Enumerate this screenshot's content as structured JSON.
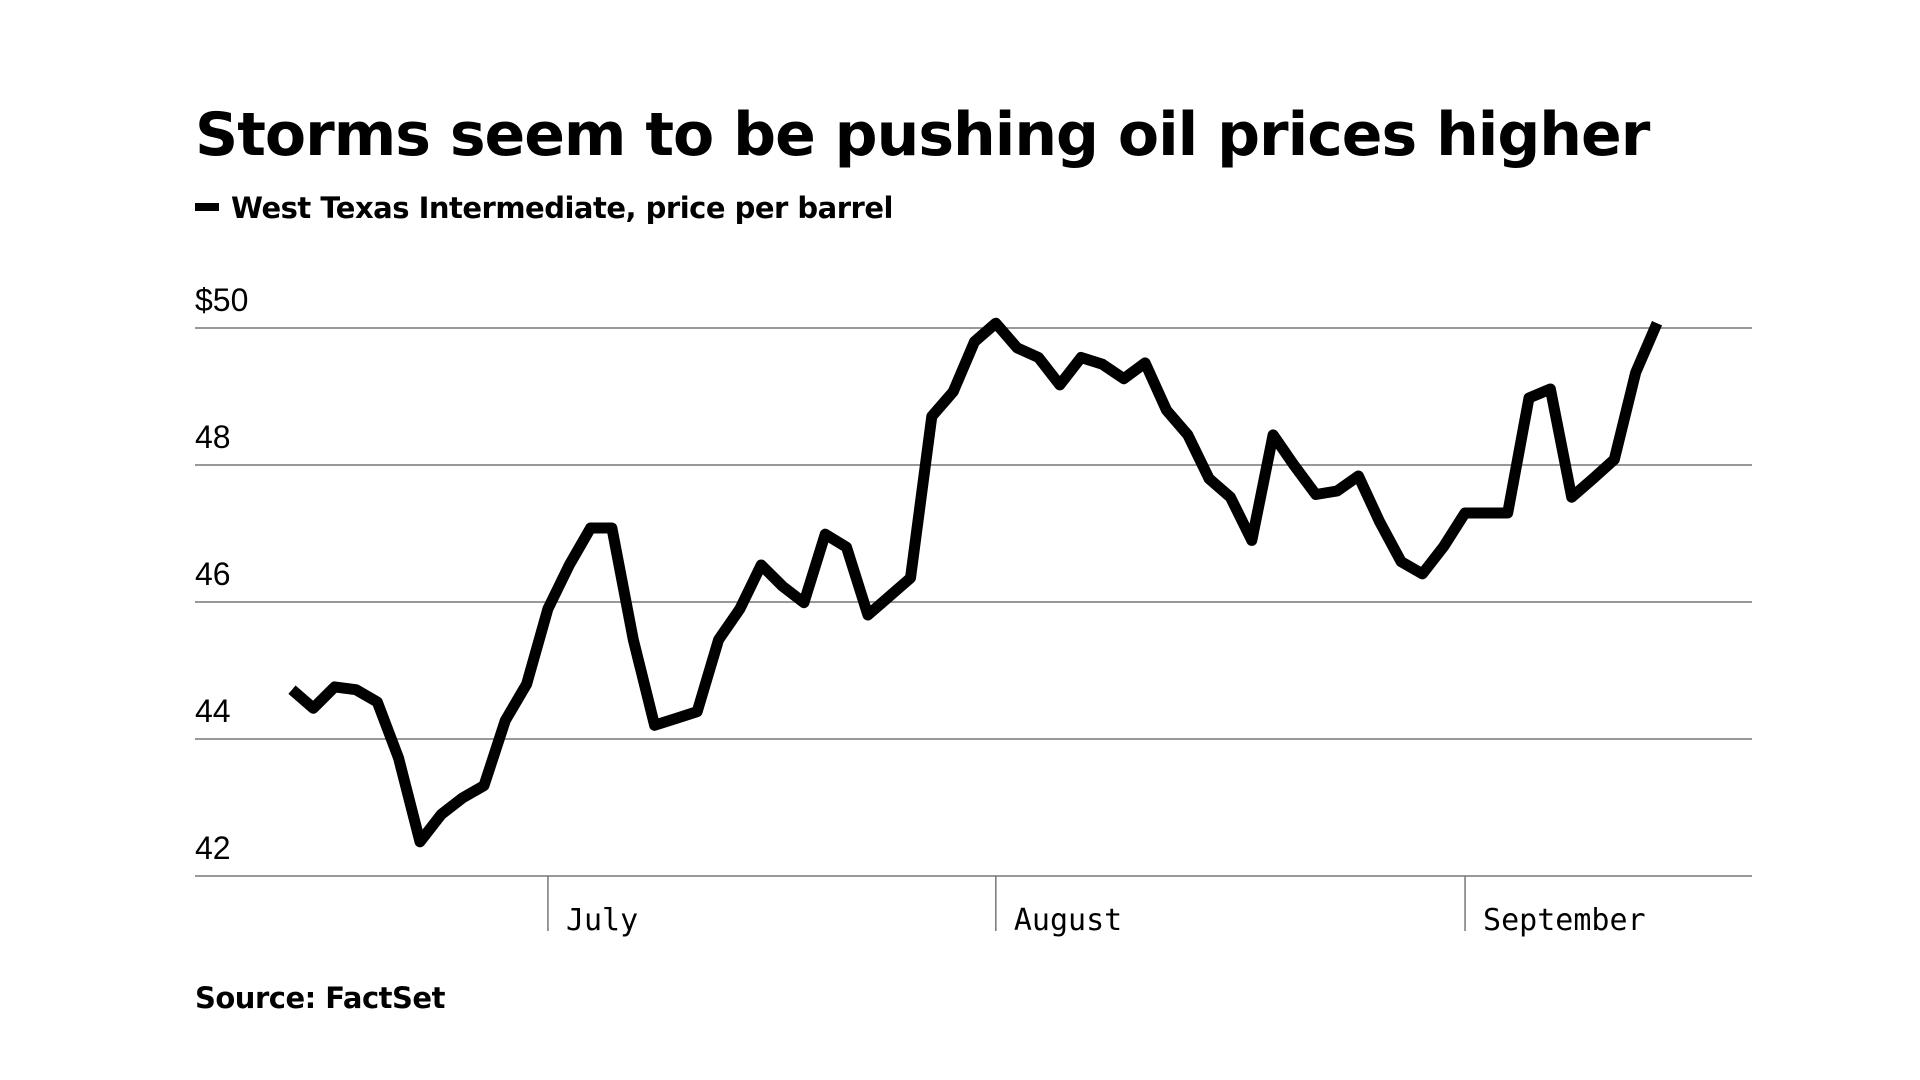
{
  "chart_data": {
    "type": "line",
    "title": "Storms seem to be pushing oil prices higher",
    "source": "Source: FactSet",
    "categories": [
      null,
      null,
      null,
      null,
      null,
      null,
      null,
      null,
      null,
      null,
      null,
      null,
      "July",
      null,
      null,
      null,
      null,
      null,
      null,
      null,
      null,
      null,
      null,
      null,
      null,
      null,
      null,
      null,
      null,
      null,
      null,
      null,
      null,
      "August",
      null,
      null,
      null,
      null,
      null,
      null,
      null,
      null,
      null,
      null,
      null,
      null,
      null,
      null,
      null,
      null,
      null,
      null,
      null,
      null,
      null,
      "September",
      null,
      null,
      null,
      null,
      null,
      null,
      null,
      null,
      null
    ],
    "series": [
      {
        "name": "West Texas Intermediate, price per barrel",
        "color": "#000000",
        "values": [
          44.72,
          44.45,
          44.76,
          44.72,
          44.54,
          43.72,
          42.5,
          42.9,
          43.14,
          43.32,
          44.27,
          44.8,
          45.9,
          46.54,
          47.08,
          47.08,
          45.45,
          44.2,
          44.3,
          44.4,
          45.45,
          45.9,
          46.54,
          46.23,
          45.99,
          46.99,
          46.8,
          45.81,
          46.08,
          46.35,
          48.71,
          49.07,
          49.8,
          50.07,
          49.71,
          49.57,
          49.17,
          49.57,
          49.47,
          49.26,
          49.49,
          48.8,
          48.44,
          47.8,
          47.53,
          46.9,
          48.44,
          47.99,
          47.57,
          47.62,
          47.84,
          47.17,
          46.59,
          46.41,
          46.81,
          47.3,
          47.3,
          47.3,
          48.98,
          49.11,
          47.53,
          47.8,
          48.08,
          49.35,
          50.07
        ]
      }
    ],
    "ylim": [
      42,
      50
    ],
    "yticks": [
      42,
      44,
      46,
      48,
      {
        "value": 50,
        "label": "$50"
      }
    ],
    "grid": true
  }
}
